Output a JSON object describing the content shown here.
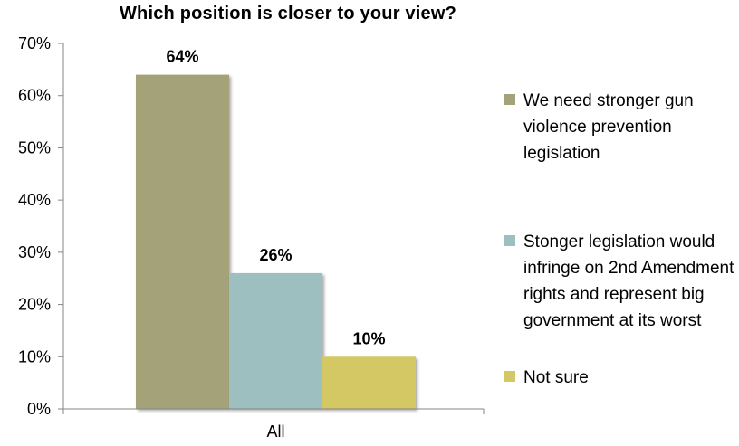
{
  "chart_data": {
    "type": "bar",
    "title": "Which position is closer to your view?",
    "categories": [
      "All"
    ],
    "series": [
      {
        "name": "We need stronger gun violence prevention legislation",
        "values": [
          64
        ],
        "color": "#a4a279",
        "data_label": "64%"
      },
      {
        "name": "Stonger legislation would infringe on 2nd Amendment rights and represent big government at its worst",
        "values": [
          26
        ],
        "color": "#9ebfbf",
        "data_label": "26%"
      },
      {
        "name": "Not sure",
        "values": [
          10
        ],
        "color": "#d4c865",
        "data_label": "10%"
      }
    ],
    "ylim": [
      0,
      70
    ],
    "y_ticks": [
      {
        "value": 0,
        "label": "0%"
      },
      {
        "value": 10,
        "label": "10%"
      },
      {
        "value": 20,
        "label": "20%"
      },
      {
        "value": 30,
        "label": "30%"
      },
      {
        "value": 40,
        "label": "40%"
      },
      {
        "value": 50,
        "label": "50%"
      },
      {
        "value": 60,
        "label": "60%"
      },
      {
        "value": 70,
        "label": "70%"
      }
    ],
    "xlabel": "",
    "ylabel": "",
    "grid": false,
    "legend_position": "right"
  }
}
